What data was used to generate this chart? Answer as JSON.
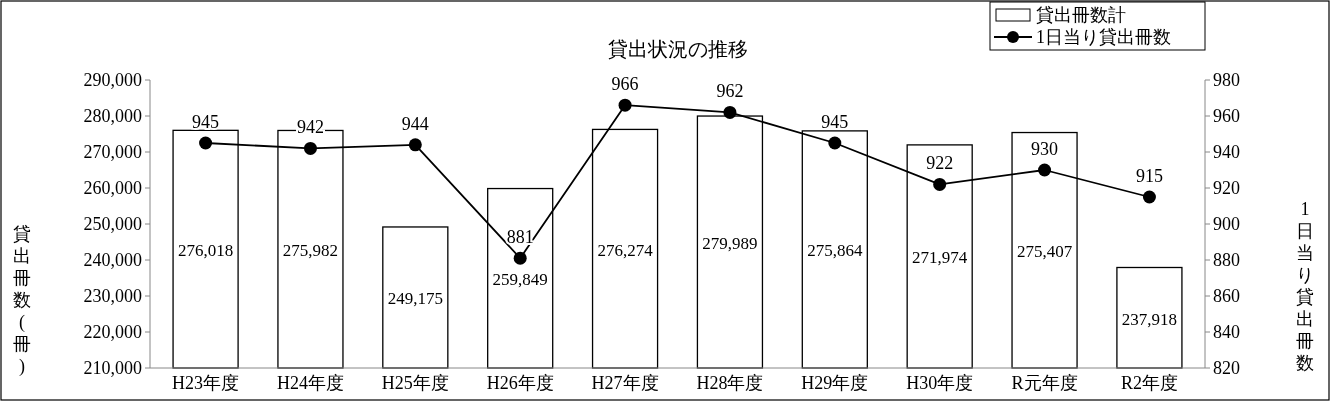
{
  "chart_data": {
    "type": "bar",
    "title": "貸出状況の推移",
    "ylabel": "貸出冊数(冊)",
    "y2label": "1日当り貸出冊数",
    "categories": [
      "H23年度",
      "H24年度",
      "H25年度",
      "H26年度",
      "H27年度",
      "H28年度",
      "H29年度",
      "H30年度",
      "R元年度",
      "R2年度"
    ],
    "series": [
      {
        "name": "貸出冊数計",
        "color": "#ffffff",
        "values": [
          276018,
          275982,
          249175,
          259849,
          276274,
          279989,
          275864,
          271974,
          275407,
          237918
        ],
        "value_labels": [
          "276,018",
          "275,982",
          "249,175",
          "259,849",
          "276,274",
          "279,989",
          "275,864",
          "271,974",
          "275,407",
          "237,918"
        ]
      },
      {
        "name": "1日当り貸出冊数",
        "type": "line",
        "axis": "y2",
        "color": "#000000",
        "marker": "circle",
        "values": [
          945,
          942,
          944,
          881,
          966,
          962,
          945,
          922,
          930,
          915
        ]
      }
    ],
    "ylim": [
      210000,
      290000
    ],
    "yticks": [
      {
        "value": 210000,
        "label": "210,000"
      },
      {
        "value": 220000,
        "label": "220,000"
      },
      {
        "value": 230000,
        "label": "230,000"
      },
      {
        "value": 240000,
        "label": "240,000"
      },
      {
        "value": 250000,
        "label": "250,000"
      },
      {
        "value": 260000,
        "label": "260,000"
      },
      {
        "value": 270000,
        "label": "270,000"
      },
      {
        "value": 280000,
        "label": "280,000"
      },
      {
        "value": 290000,
        "label": "290,000"
      }
    ],
    "y2lim": [
      820,
      980
    ],
    "y2ticks": [
      820,
      840,
      860,
      880,
      900,
      920,
      940,
      960,
      980
    ],
    "data_labels": true,
    "legend": "top right",
    "grid": false
  }
}
